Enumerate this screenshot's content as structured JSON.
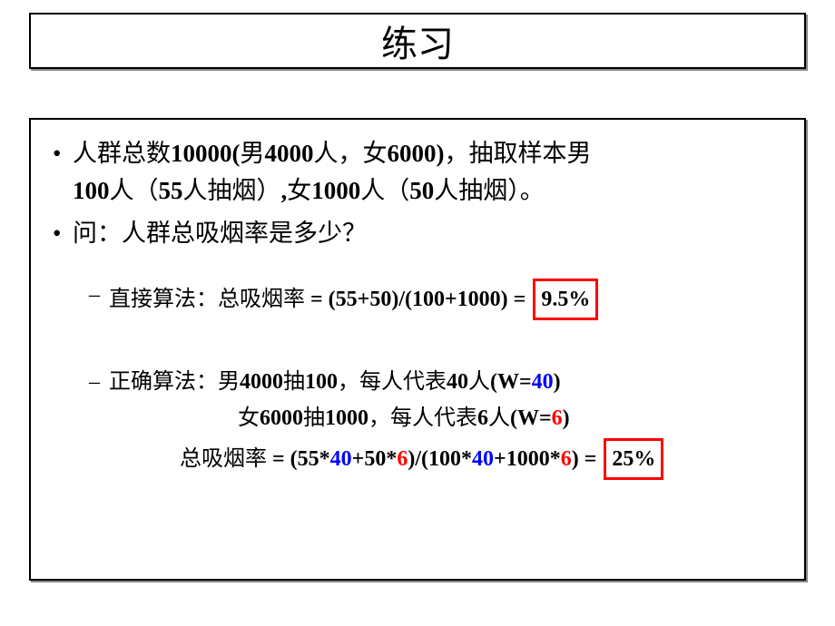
{
  "title": "练习",
  "problem": {
    "line1_pre": "人群总数",
    "total": "10000",
    "open_paren": "(",
    "male_label": "男",
    "male_count": "4000",
    "people": "人",
    "comma_cn": "，",
    "female_label": "女",
    "female_count": "6000",
    "close_paren": ")",
    "sample_pre": "抽取样本男",
    "line2_male_sample": "100",
    "line2_people": "人",
    "open_paren2": "（",
    "male_smokers": "55",
    "smoke_text": "人抽烟",
    "close_paren2": "）",
    "comma2": ",",
    "female_label2": "女",
    "female_sample": "1000",
    "people2": "人",
    "open_paren3": "（",
    "female_smokers": "50",
    "smoke_text2": "人抽烟",
    "close_paren3": "）",
    "period": "。"
  },
  "question": "问：人群总吸烟率是多少？",
  "direct": {
    "label": "直接算法：总吸烟率",
    "eq": " = (55+50)/(100+1000) = ",
    "result": "9.5%"
  },
  "correct": {
    "label": "正确算法：男",
    "m_total": "4000",
    "m_mid": "抽",
    "m_sample": "100",
    "m_tail": "，每人代表",
    "m_weight_num": "40",
    "m_tail2": "人",
    "m_w_open": "(W=",
    "m_w_val": "40",
    "m_w_close": ")",
    "f_pre": "女",
    "f_total": "6000",
    "f_mid": "抽",
    "f_sample": "1000",
    "f_tail": "，每人代表",
    "f_weight_num": "6",
    "f_tail2": "人",
    "f_w_open": "(W=",
    "f_w_val": "6",
    "f_w_close": ")"
  },
  "final": {
    "label": "总吸烟率",
    "eq_open": " = (55*",
    "v40a": "40",
    "plus": "+50*",
    "v6a": "6",
    "mid": ")/(100*",
    "v40b": "40",
    "plus2": "+1000*",
    "v6b": "6",
    "close": ") = ",
    "result": "25%"
  },
  "colors": {
    "blue": "#0000ff",
    "red": "#ff0000",
    "black": "#000000",
    "box_border": "#ff0000",
    "bg": "#ffffff"
  }
}
